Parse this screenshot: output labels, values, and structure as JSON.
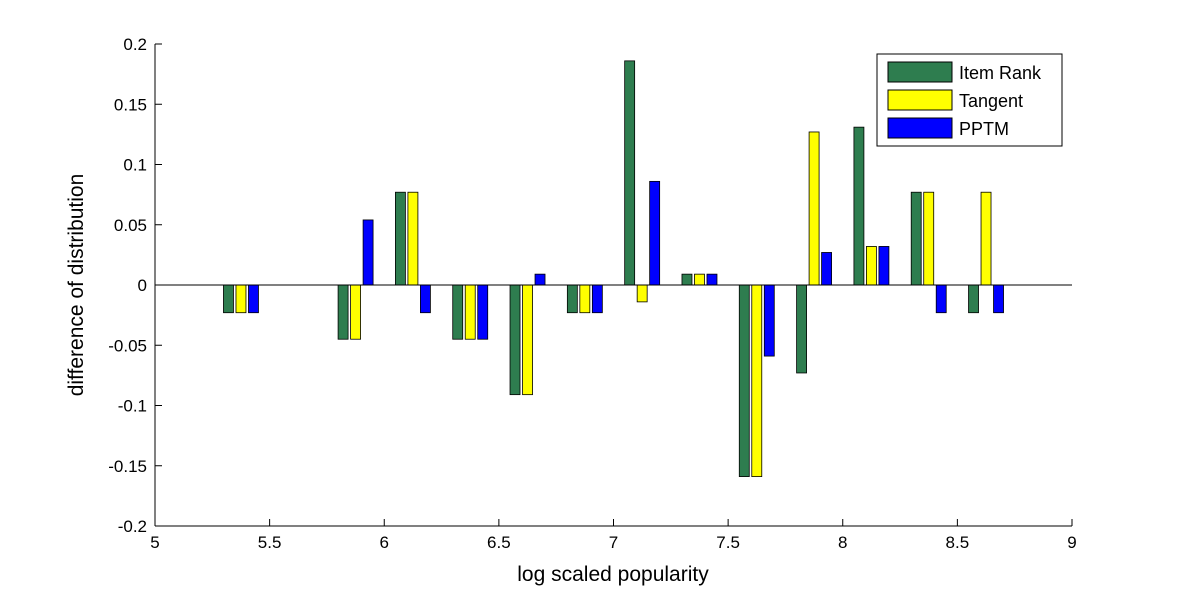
{
  "chart_data": {
    "type": "bar",
    "title": "",
    "xlabel": "log scaled popularity",
    "ylabel": "difference of distribution",
    "xlim": [
      5,
      9
    ],
    "ylim": [
      -0.2,
      0.2
    ],
    "xticks": [
      "5",
      "5.5",
      "6",
      "6.5",
      "7",
      "7.5",
      "8",
      "8.5",
      "9"
    ],
    "xtick_values": [
      5,
      5.5,
      6,
      6.5,
      7,
      7.5,
      8,
      8.5,
      9
    ],
    "yticks": [
      "-0.2",
      "-0.15",
      "-0.1",
      "-0.05",
      "0",
      "0.05",
      "0.1",
      "0.15",
      "0.2"
    ],
    "ytick_values": [
      -0.2,
      -0.15,
      -0.1,
      -0.05,
      0,
      0.05,
      0.1,
      0.15,
      0.2
    ],
    "x": [
      5.375,
      5.875,
      6.125,
      6.375,
      6.625,
      6.875,
      7.125,
      7.375,
      7.625,
      7.875,
      8.125,
      8.375,
      8.625
    ],
    "grid": false,
    "legend_position": "top-right",
    "series": [
      {
        "name": "Item Rank",
        "color": "#2e7d4f",
        "values": [
          -0.023,
          -0.045,
          0.077,
          -0.045,
          -0.091,
          -0.023,
          0.186,
          0.009,
          -0.159,
          -0.073,
          0.131,
          0.077,
          -0.023
        ]
      },
      {
        "name": "Tangent",
        "color": "#ffff00",
        "values": [
          -0.023,
          -0.045,
          0.077,
          -0.045,
          -0.091,
          -0.023,
          -0.014,
          0.009,
          -0.159,
          0.127,
          0.032,
          0.077,
          0.077
        ]
      },
      {
        "name": "PPTM",
        "color": "#0000ff",
        "values": [
          -0.023,
          0.054,
          -0.023,
          -0.045,
          0.009,
          -0.023,
          0.086,
          0.009,
          -0.059,
          0.027,
          0.032,
          -0.023,
          -0.023
        ]
      }
    ]
  }
}
